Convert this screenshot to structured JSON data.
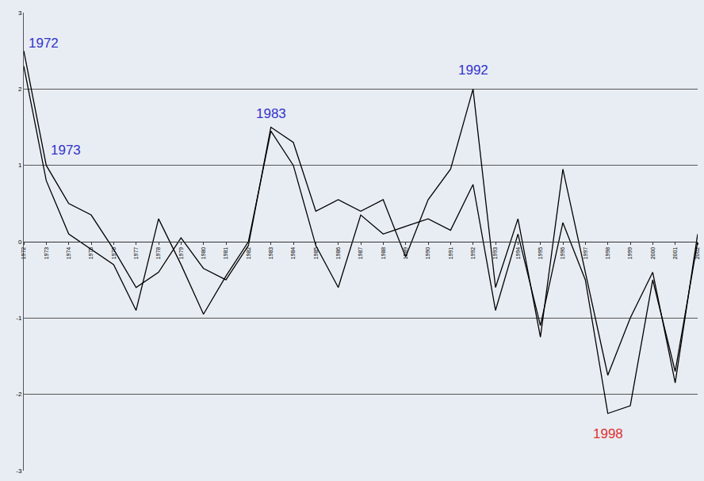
{
  "chart_data": {
    "type": "line",
    "categories": [
      "1972",
      "1973",
      "1974",
      "1975",
      "1976",
      "1977",
      "1978",
      "1979",
      "1980",
      "1981",
      "1982",
      "1983",
      "1984",
      "1985",
      "1986",
      "1987",
      "1988",
      "1989",
      "1990",
      "1991",
      "1992",
      "1993",
      "1994",
      "1995",
      "1996",
      "1997",
      "1998",
      "1999",
      "2000",
      "2001",
      "2002"
    ],
    "series": [
      {
        "color": "#000000",
        "values": [
          2.5,
          1.0,
          0.5,
          0.35,
          -0.1,
          -0.6,
          -0.4,
          0.05,
          -0.35,
          -0.5,
          -0.05,
          1.5,
          1.3,
          0.4,
          0.55,
          0.4,
          0.55,
          -0.2,
          0.55,
          0.95,
          2.0,
          -0.6,
          0.3,
          -1.25,
          0.95,
          -0.4,
          -1.75,
          -1.0,
          -0.4,
          -1.85,
          0.1
        ]
      },
      {
        "color": "#000000",
        "values": [
          2.3,
          0.8,
          0.1,
          -0.1,
          -0.3,
          -0.9,
          0.3,
          -0.3,
          -0.95,
          -0.45,
          0.0,
          1.45,
          1.0,
          -0.05,
          -0.6,
          0.35,
          0.1,
          0.2,
          0.3,
          0.15,
          0.75,
          -0.9,
          0.1,
          -1.1,
          0.25,
          -0.5,
          -2.25,
          -2.15,
          -0.5,
          -1.7,
          0.0
        ]
      }
    ],
    "ylim": [
      -3,
      3
    ],
    "yticks": [
      -3,
      -2,
      -1,
      0,
      1,
      2,
      3
    ],
    "grid": true,
    "annotations": [
      {
        "text": "1972",
        "x": "1972",
        "y": 2.6,
        "color": "#3333cc"
      },
      {
        "text": "1973",
        "x": "1973",
        "y": 1.2,
        "color": "#3333cc"
      },
      {
        "text": "1983",
        "x": "1983",
        "y": 1.68,
        "color": "#3333cc"
      },
      {
        "text": "1992",
        "x": "1992",
        "y": 2.25,
        "color": "#3333cc"
      },
      {
        "text": "1998",
        "x": "1998",
        "y": -2.52,
        "color": "#e03030"
      }
    ]
  }
}
